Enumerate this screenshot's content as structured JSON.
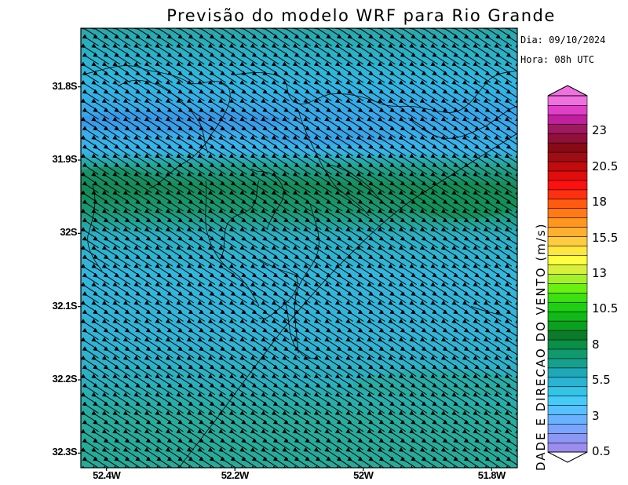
{
  "title": "Previsão do modelo WRF para Rio Grande",
  "info": {
    "date": "Dia: 09/10/2024",
    "hour": "Hora: 08h UTC"
  },
  "y_axis": {
    "ticks": [
      "31.8S",
      "31.9S",
      "32S",
      "32.1S",
      "32.2S",
      "32.3S"
    ],
    "values": [
      -31.8,
      -31.9,
      -32.0,
      -32.1,
      -32.2,
      -32.3
    ]
  },
  "x_axis": {
    "ticks": [
      "52.4W",
      "52.2W",
      "52W",
      "51.8W"
    ],
    "values": [
      -52.4,
      -52.2,
      -52.0,
      -51.8
    ]
  },
  "map_extent": {
    "lon": [
      -52.44,
      -51.76
    ],
    "lat": [
      -32.32,
      -31.72
    ]
  },
  "colorbar": {
    "title": "DADE E DIRECAO DO VENTO (m/s)",
    "labels": [
      "0.5",
      "3",
      "5.5",
      "8",
      "10.5",
      "13",
      "15.5",
      "18",
      "20.5",
      "23"
    ],
    "label_values": [
      0.5,
      3,
      5.5,
      8,
      10.5,
      13,
      15.5,
      18,
      20.5,
      23
    ],
    "range": [
      0.5,
      25.5
    ],
    "colors": [
      "#9b8cf0",
      "#8c96f5",
      "#7aa5ff",
      "#69b2ff",
      "#57c0ff",
      "#46cbf9",
      "#33c4e6",
      "#2ab3d2",
      "#1fa8b8",
      "#14a08c",
      "#0f9a6e",
      "#0a8f47",
      "#0b7a2a",
      "#0aa020",
      "#12b818",
      "#1ecf12",
      "#3de010",
      "#6cf010",
      "#a6f02a",
      "#d8f03c",
      "#ffff40",
      "#ffe640",
      "#ffcc40",
      "#ffb030",
      "#ff9620",
      "#ff7a15",
      "#ff5a10",
      "#ff3010",
      "#ff1010",
      "#e20c0c",
      "#c00c0c",
      "#a00c14",
      "#880a14",
      "#90103a",
      "#a01860",
      "#c020a0",
      "#e040c8",
      "#f070e0"
    ]
  },
  "wind": {
    "direction": "NW",
    "field": "speed and direction arrows"
  }
}
